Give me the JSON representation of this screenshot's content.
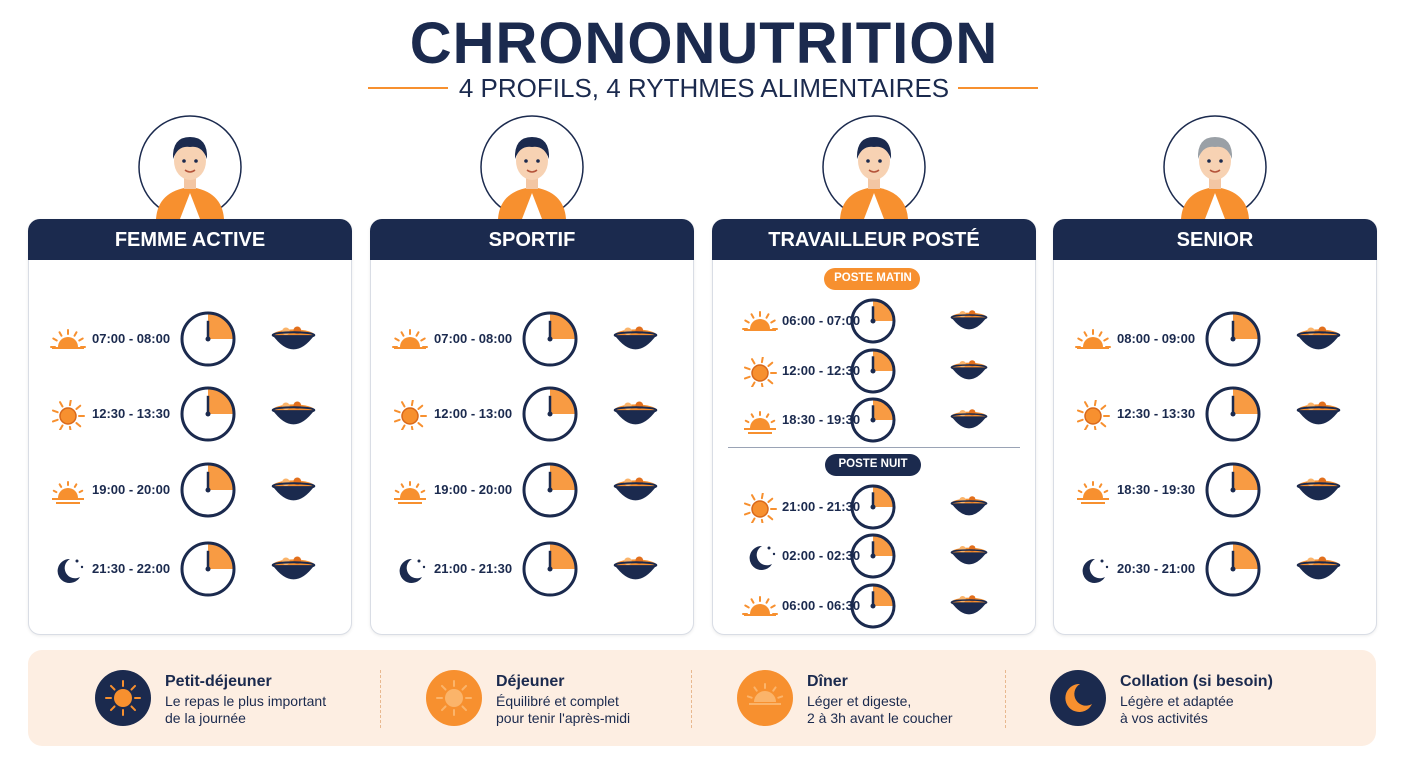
{
  "header": {
    "title": "CHRONONUTRITION",
    "subtitle": "4 PROFILS, 4 RYTHMES ALIMENTAIRES"
  },
  "profiles": [
    {
      "title": "FEMME ACTIVE",
      "meals": [
        "07:00 - 08:00",
        "12:30 - 13:30",
        "19:00 - 20:00",
        "21:30 - 22:00"
      ]
    },
    {
      "title": "SPORTIF",
      "meals": [
        "07:00 - 08:00",
        "12:00 - 13:00",
        "19:00 - 20:00",
        "21:00 - 21:30"
      ]
    },
    {
      "title": "TRAVAILLEUR POSTÉ",
      "sections": [
        {
          "label": "POSTE MATIN",
          "meals": [
            "06:00 - 07:00",
            "12:00 - 12:30",
            "18:30 - 19:30"
          ]
        },
        {
          "label": "POSTE NUIT",
          "meals": [
            "21:00 - 21:30",
            "02:00 - 02:30",
            "06:00 - 06:30"
          ]
        }
      ]
    },
    {
      "title": "SENIOR",
      "meals": [
        "08:00 - 09:00",
        "12:30 - 13:30",
        "18:30 - 19:30",
        "20:30 - 21:00"
      ]
    }
  ],
  "legend": [
    {
      "title": "Petit-déjeuner",
      "lines": [
        "Le repas le plus important",
        "de la journée"
      ]
    },
    {
      "title": "Déjeuner",
      "lines": [
        "Équilibré et complet",
        "pour tenir l'après-midi"
      ]
    },
    {
      "title": "Dîner",
      "lines": [
        "Léger et digeste,",
        "2 à 3h avant le coucher"
      ]
    },
    {
      "title": "Collation (si besoin)",
      "lines": [
        "Légère et adaptée",
        "à vos activités"
      ]
    }
  ]
}
